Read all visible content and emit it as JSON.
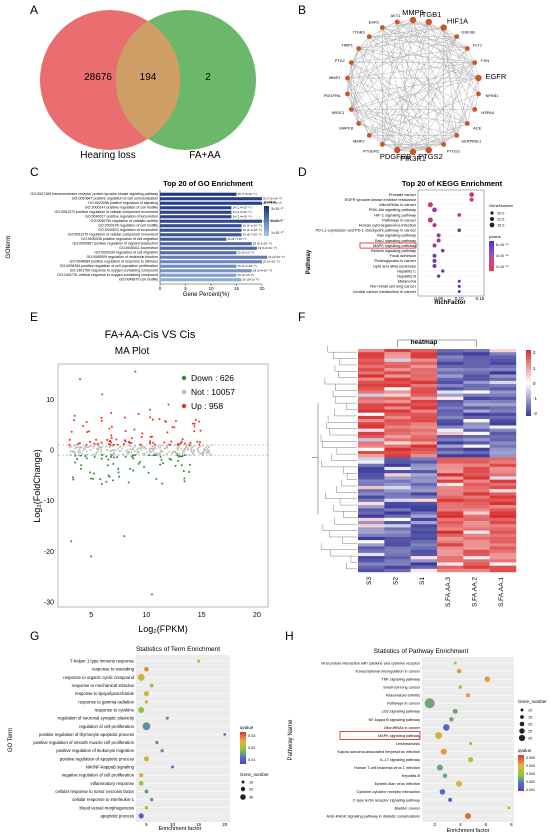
{
  "panels": {
    "A": {
      "letter": "A",
      "left_only": "28676",
      "overlap": "194",
      "right_only": "2",
      "left_label": "Hearing loss",
      "right_label": "FA+AA",
      "colors": {
        "left": "#ea6d6f",
        "right": "#6cb86a",
        "overlap": "#cf9e66"
      }
    },
    "B": {
      "letter": "B",
      "nodes": [
        "MMP9",
        "ITGB1",
        "HIF1A",
        "GSK3B",
        "FLT1",
        "FKN",
        "EGFR",
        "NFKB1",
        "HSPA4",
        "ACE",
        "SERPINE1",
        "PTGS1",
        "PTGS2",
        "PIK3R1",
        "PDGFRB",
        "PTGER2",
        "MMP2",
        "MAPK8",
        "NR3C1",
        "PDGFRA",
        "MMP1",
        "PTK2",
        "TIMP1",
        "ITGB3",
        "ESR1",
        "AKT1"
      ]
    },
    "C": {
      "letter": "C",
      "title": "Top 20 of GO Enrichment",
      "ylabel": "GOterm",
      "xlabel": "Gene Percent(%)",
      "legend_title": "pvalue",
      "legend_ticks": [
        "3×10⁻¹⁷",
        "2×10⁻¹⁷",
        "1×10⁻¹⁷"
      ]
    },
    "D": {
      "letter": "D",
      "title": "Top 20 of KEGG Enrichment",
      "ylabel": "Pathway",
      "xlabel": "RichFactor",
      "highlight": "MAPK signaling pathway",
      "legend_gene_title": "GeneNumber",
      "legend_gene_values": [
        "10.0",
        "12.5",
        "15.0"
      ],
      "legend_p_title": "pvalue",
      "legend_p_ticks": [
        "6×10⁻¹⁰",
        "4×10⁻¹⁰",
        "2×10⁻¹⁰"
      ]
    },
    "E": {
      "letter": "E",
      "title": "FA+AA-Cis VS Cis",
      "subtitle": "MA Plot",
      "xlabel": "Log₂(FPKM)",
      "ylabel": "Log₂(FoldChange)",
      "legend": [
        {
          "label": "Down : 626",
          "color": "#2e8b3a"
        },
        {
          "label": "Not : 10057",
          "color": "#b8b8b8"
        },
        {
          "label": "Up : 958",
          "color": "#e8321f"
        }
      ]
    },
    "F": {
      "letter": "F",
      "title": "heatmap",
      "columns": [
        "S3",
        "S2",
        "S1",
        "S.FA.AA.3",
        "S.FA.AA.2",
        "S.FA.AA.1"
      ],
      "scale_ticks": [
        "2",
        "1",
        "0",
        "-1",
        "-2"
      ]
    },
    "G": {
      "letter": "G",
      "title": "Statistics of Term Enrichment",
      "ylabel": "GO Term",
      "xlabel": "Enrichment factor",
      "legend_q_title": "qvalue",
      "legend_q_ticks": [
        "0.03",
        "0.02",
        "0.01"
      ],
      "legend_gene_title": "Gene_number",
      "legend_gene_values": [
        "10",
        "20",
        "30"
      ]
    },
    "H": {
      "letter": "H",
      "title": "Statistics of Pathway Enrichment",
      "ylabel": "Pathway Name",
      "xlabel": "Enrichment factor",
      "highlight": "MAPK signaling pathway",
      "legend_gene_title": "Gene_number",
      "legend_gene_values": [
        "10",
        "15",
        "20",
        "25",
        "30"
      ],
      "legend_q_title": "qvalue",
      "legend_q_ticks": [
        "0.005",
        "0.004",
        "0.003",
        "0.002",
        "0.001"
      ]
    }
  },
  "chart_data": [
    {
      "type": "bar",
      "title": "Top 20 of GO Enrichment",
      "xlabel": "Gene Percent(%)",
      "ylabel": "GOterm",
      "xlim": [
        0,
        20
      ],
      "xticks": [
        "0",
        "5",
        "10",
        "15",
        "20"
      ],
      "categories": [
        "GO:0007169 transmembrane receptor protein tyrosine kinase signaling pathway",
        "GO:0010647 positive regulation of cell communication",
        "GO:0023056 positive regulation of signaling",
        "GO:2000147 positive regulation of cell motility",
        "GO:0051272 positive regulation of cellular component movement",
        "GO:0040017 positive regulation of locomotion",
        "GO:0050790 regulation of catalytic activity",
        "GO:2000145 regulation of cell motility",
        "GO:0040012 regulation of locomotion",
        "GO:0051270 regulation of cellular component movement",
        "GO:0030335 positive regulation of cell migration",
        "GO:0009967 positive regulation of signal transduction",
        "GO:0040011 locomotion",
        "GO:0030334 regulation of cell migration",
        "GO:0065009 regulation of molecular function",
        "GO:0048584 positive regulation of response to stimulus",
        "GO:0008284 positive regulation of cell population proliferation",
        "GO:1901700 response to oxygen-containing compound",
        "GO:1901701 cellular response to oxygen-containing compound",
        "GO:0048870 cell motility"
      ],
      "values": [
        15,
        20,
        20,
        14,
        14,
        14,
        20,
        16,
        16,
        16,
        13,
        18,
        19,
        15,
        21,
        20,
        15,
        18,
        15,
        16
      ],
      "labels": [
        "15 (7.5×10⁻¹⁶)",
        "20 (7.5×10⁻¹⁶)",
        "20 (7.5×10⁻¹⁶)",
        "14 (1.4×10⁻¹⁶)",
        "14 (1.4×10⁻¹⁶)",
        "14 (1.4×10⁻¹⁶)",
        "20 (7.5×10⁻¹⁶)",
        "16 (4.1×10⁻¹⁶)",
        "16 (4.1×10⁻¹⁶)",
        "16 (8.7×10⁻¹⁶)",
        "13 (8.7×10⁻¹⁶)",
        "18 (5.3×10⁻¹⁶)",
        "19 (1.8×10⁻¹⁶)",
        "15 (2×10⁻¹⁶)",
        "21 (2×10⁻¹⁶)",
        "20 (2×10⁻¹⁶)",
        "15 (2.3×10⁻¹⁶)",
        "18 (2.4×10⁻¹⁶)",
        "15 (2×10⁻¹⁶)",
        "16 (3×10⁻¹⁶)"
      ],
      "shades": [
        0.95,
        0.9,
        0.9,
        0.88,
        0.86,
        0.86,
        0.84,
        0.8,
        0.78,
        0.74,
        0.72,
        0.66,
        0.62,
        0.58,
        0.5,
        0.44,
        0.4,
        0.34,
        0.26,
        0.18
      ]
    },
    {
      "type": "scatter",
      "title": "Top 20 of KEGG Enrichment",
      "xlabel": "RichFactor",
      "ylabel": "Pathway",
      "xlim": [
        0,
        0.16
      ],
      "xticks": [
        "0.05",
        "0.10",
        "0.15"
      ],
      "categories": [
        "Prostate cancer",
        "EGFR tyrosine kinase inhibitor resistance",
        "MicroRNAs in cancer",
        "PI3K-Akt signaling pathway",
        "HIF-1 signaling pathway",
        "Pathways in cancer",
        "Human cytomegalovirus infection",
        "PD-L1 expression and PD-1 checkpoint pathway in cancer",
        "Ras signaling pathway",
        "Rap1 signaling pathway",
        "MAPK signaling pathway",
        "Relaxin signaling pathway",
        "Focal adhesion",
        "Proteoglycans in cancer",
        "Lipid and atherosclerosis",
        "Hepatitis C",
        "Hepatitis B",
        "Melanoma",
        "Non-small cell lung cancer",
        "Central carbon metabolism in cancer"
      ],
      "x": [
        0.13,
        0.13,
        0.03,
        0.04,
        0.1,
        0.03,
        0.04,
        0.1,
        0.05,
        0.05,
        0.04,
        0.06,
        0.04,
        0.04,
        0.04,
        0.06,
        0.05,
        0.1,
        0.1,
        0.1
      ],
      "size": [
        14,
        12,
        15,
        14,
        11,
        15,
        12,
        11,
        12,
        12,
        12,
        11,
        12,
        12,
        12,
        10,
        10,
        9,
        9,
        9
      ],
      "p": [
        0.3,
        0.2,
        0.2,
        0.5,
        0.4,
        0.3,
        0.5,
        0.6,
        0.5,
        0.5,
        0.5,
        0.6,
        0.7,
        0.7,
        0.7,
        0.8,
        0.8,
        0.95,
        0.95,
        0.95
      ]
    },
    {
      "type": "scatter",
      "title": "MA Plot",
      "xlabel": "Log₂(FPKM)",
      "ylabel": "Log₂(FoldChange)",
      "xlim": [
        2,
        21
      ],
      "ylim": [
        -31,
        17
      ],
      "xticks": [
        5,
        10,
        15,
        20
      ],
      "yticks": [
        10,
        0,
        -10,
        -20,
        -30
      ]
    },
    {
      "type": "heatmap",
      "title": "heatmap",
      "columns": [
        "S3",
        "S2",
        "S1",
        "S.FA.AA.3",
        "S.FA.AA.2",
        "S.FA.AA.1"
      ]
    },
    {
      "type": "scatter",
      "title": "Statistics of Term Enrichment",
      "xlabel": "Enrichment factor",
      "ylabel": "GO Term",
      "xlim": [
        3,
        21
      ],
      "xticks": [
        "5",
        "10",
        "15",
        "20"
      ],
      "categories": [
        "T-helper 1 type immune response",
        "response to wounding",
        "response to organic cyclic compound",
        "response to mechanical stimulus",
        "response to lipopolysaccharide",
        "response to gamma radiation",
        "response to cytokine",
        "regulation of neuronal synaptic plasticity",
        "regulation of cell proliferation",
        "positive regulation of thymocyte apoptotic process",
        "positive regulation of smooth muscle cell proliferation",
        "positive regulation of leukocyte migration",
        "positive regulation of apoptotic process",
        "NIK/NF-kappaB signaling",
        "negative regulation of cell proliferation",
        "inflammatory response",
        "cellular response to tumor necrosis factor",
        "cellular response to interleukin-1",
        "blood vessel morphogenesis",
        "apoptotic process"
      ],
      "x": [
        15,
        5,
        4,
        6,
        5,
        5,
        4,
        9,
        5,
        20,
        7,
        8,
        5,
        10,
        4,
        4,
        5,
        6,
        5,
        4
      ],
      "size": [
        5,
        12,
        22,
        8,
        14,
        6,
        18,
        5,
        26,
        3,
        6,
        6,
        14,
        4,
        10,
        12,
        8,
        6,
        6,
        14
      ],
      "q": [
        0.02,
        0.025,
        0.02,
        0.015,
        0.02,
        0.02,
        0.015,
        0.01,
        0.01,
        0.005,
        0.01,
        0.01,
        0.02,
        0.005,
        0.02,
        0.015,
        0.01,
        0.01,
        0.015,
        0.005
      ]
    },
    {
      "type": "scatter",
      "title": "Statistics of Pathway Enrichment",
      "xlabel": "Enrichment factor",
      "ylabel": "Pathway Name",
      "xlim": [
        1,
        8.2
      ],
      "xticks": [
        "2",
        "4",
        "6",
        "8"
      ],
      "categories": [
        "Viral protein interaction with cytokine and cytokine receptor",
        "Transcriptional misregulation in cancer",
        "TNF signaling pathway",
        "Small cell lung cancer",
        "Rheumatoid arthritis",
        "Pathways in cancer",
        "p53 signaling pathway",
        "NF-kappa B signaling pathway",
        "MicroRNAs in cancer",
        "MAPK signaling pathway",
        "Leishmaniasis",
        "Kaposi sarcoma-associated herpesvirus infection",
        "IL-17 signaling pathway",
        "Human T-cell leukemia virus 1 infection",
        "Hepatitis B",
        "Epstein-Barr virus infection",
        "Cytokine-cytokine receptor interaction",
        "C-type lectin receptor signaling pathway",
        "Bladder cancer",
        "AGE-RAGE signaling pathway in diabetic complications"
      ],
      "x": [
        3.6,
        3.9,
        6.1,
        4.0,
        4.6,
        1.6,
        3.6,
        3.3,
        2.9,
        2.3,
        4.8,
        2.7,
        4.8,
        2.4,
        2.8,
        3.9,
        2.6,
        3.2,
        7.8,
        4.6
      ],
      "size": [
        4,
        10,
        14,
        6,
        8,
        32,
        12,
        10,
        18,
        20,
        4,
        16,
        12,
        16,
        10,
        16,
        14,
        8,
        3,
        16
      ],
      "q": [
        0.003,
        0.004,
        0.004,
        0.003,
        0.004,
        0.002,
        0.002,
        0.002,
        0.001,
        0.0035,
        0.004,
        0.004,
        0.003,
        0.002,
        0.002,
        0.0035,
        0.001,
        0.001,
        0.004,
        0.0045
      ]
    }
  ]
}
